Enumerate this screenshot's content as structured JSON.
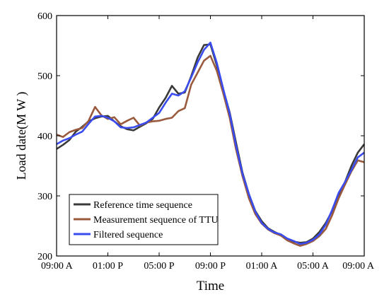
{
  "chart_data": {
    "type": "line",
    "title": "",
    "xlabel": "Time",
    "ylabel": "Load date(M W )",
    "ylim": [
      200,
      600
    ],
    "yticks": [
      200,
      300,
      400,
      500,
      600
    ],
    "xlim": [
      0,
      24
    ],
    "xticks": [
      0,
      4,
      8,
      12,
      16,
      20,
      24
    ],
    "xticklabels": [
      "09:00 A",
      "01:00 P",
      "05:00 P",
      "09:00 P",
      "01:00 A",
      "05:00 A",
      "09:00 A"
    ],
    "grid": false,
    "legend_position": "bottom-left",
    "x": [
      0,
      0.5,
      1,
      1.5,
      2,
      2.5,
      3,
      3.5,
      4,
      4.5,
      5,
      5.5,
      6,
      6.5,
      7,
      7.5,
      8,
      8.5,
      9,
      9.5,
      10,
      10.5,
      11,
      11.5,
      12,
      12.5,
      13,
      13.5,
      14,
      14.5,
      15,
      15.5,
      16,
      16.5,
      17,
      17.5,
      18,
      18.5,
      19,
      19.5,
      20,
      20.5,
      21,
      21.5,
      22,
      22.5,
      23,
      23.5,
      24
    ],
    "series": [
      {
        "name": "Reference time sequence",
        "color": "#3a3a3a",
        "values": [
          378,
          385,
          393,
          407,
          415,
          424,
          429,
          432,
          433,
          424,
          416,
          411,
          409,
          415,
          421,
          428,
          447,
          463,
          483,
          470,
          472,
          499,
          530,
          551,
          552,
          517,
          477,
          439,
          388,
          339,
          303,
          275,
          258,
          246,
          240,
          235,
          228,
          224,
          222,
          223,
          229,
          240,
          255,
          275,
          300,
          323,
          350,
          372,
          386
        ]
      },
      {
        "name": "Measurement sequence of TTU",
        "color": "#9a5a3e",
        "values": [
          402,
          398,
          406,
          410,
          413,
          425,
          448,
          434,
          428,
          431,
          419,
          425,
          430,
          417,
          422,
          424,
          425,
          428,
          430,
          441,
          446,
          485,
          505,
          525,
          533,
          508,
          471,
          430,
          377,
          333,
          296,
          270,
          254,
          244,
          238,
          234,
          226,
          221,
          217,
          220,
          225,
          233,
          245,
          268,
          296,
          319,
          341,
          359,
          356
        ]
      },
      {
        "name": "Filtered sequence",
        "color": "#3a4cf0",
        "values": [
          386,
          392,
          396,
          402,
          407,
          420,
          432,
          433,
          430,
          424,
          414,
          413,
          414,
          418,
          422,
          430,
          438,
          455,
          470,
          467,
          474,
          497,
          522,
          543,
          555,
          521,
          478,
          437,
          383,
          337,
          303,
          274,
          255,
          245,
          239,
          236,
          229,
          225,
          220,
          222,
          227,
          236,
          252,
          277,
          305,
          323,
          343,
          364,
          372
        ]
      }
    ]
  }
}
